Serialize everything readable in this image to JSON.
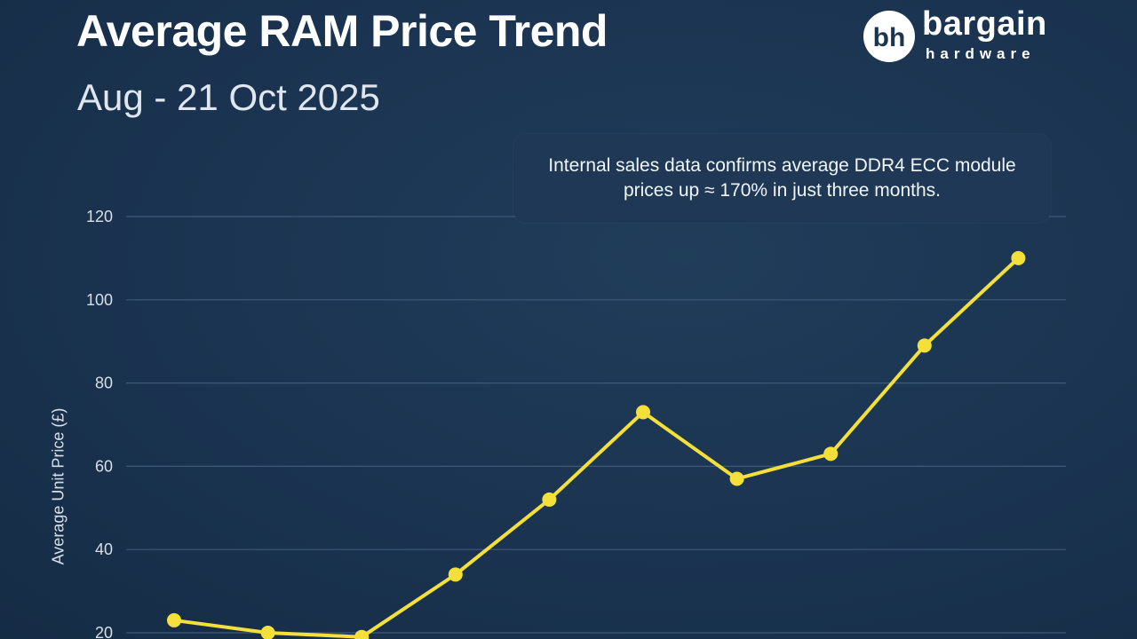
{
  "header": {
    "title": "Average RAM Price Trend",
    "subtitle": "Aug - 21 Oct 2025"
  },
  "logo": {
    "mark": "bh",
    "name": "bargain",
    "tagline": "hardware"
  },
  "annotation": {
    "text": "Internal sales data confirms average DDR4 ECC module prices up ≈ 170% in just three months."
  },
  "colors": {
    "background": "#1b3550",
    "line": "#f5e03a",
    "grid": "#3f5a78",
    "text": "#ffffff"
  },
  "chart_data": {
    "type": "line",
    "title": "Average RAM Price Trend",
    "subtitle": "Aug - 21 Oct 2025",
    "xlabel": "",
    "ylabel": "Average Unit Price (£)",
    "ylim": [
      20,
      120
    ],
    "yticks": [
      20,
      40,
      60,
      80,
      100,
      120
    ],
    "grid": true,
    "series": [
      {
        "values": [
          23,
          20,
          19,
          34,
          52,
          73,
          57,
          63,
          89,
          110
        ]
      }
    ]
  }
}
